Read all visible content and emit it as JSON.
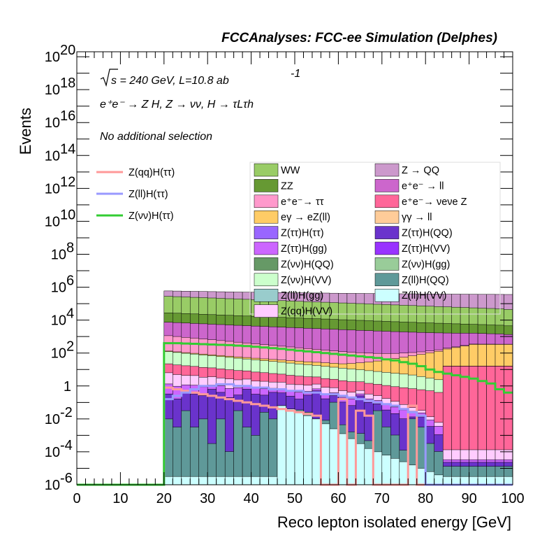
{
  "chart_data": {
    "type": "stacked-histogram",
    "title": "FCCAnalyses: FCC-ee Simulation (Delphes)",
    "xlabel": "Reco lepton isolated energy [GeV]",
    "ylabel": "Events",
    "xlim": [
      0,
      100
    ],
    "ylim": [
      1e-06,
      2e+20
    ],
    "yscale": "log",
    "bin_width": 2,
    "bin_start": 20,
    "x_ticks": [
      "0",
      "10",
      "20",
      "30",
      "40",
      "50",
      "60",
      "70",
      "80",
      "90",
      "100"
    ],
    "y_ticks": [
      {
        "base": "10",
        "exp": "-6",
        "value": 1e-06
      },
      {
        "base": "10",
        "exp": "-4",
        "value": 0.0001
      },
      {
        "base": "10",
        "exp": "-2",
        "value": 0.01
      },
      {
        "base": "1",
        "exp": "",
        "value": 1
      },
      {
        "base": "10",
        "exp": "2",
        "value": 100.0
      },
      {
        "base": "10",
        "exp": "4",
        "value": 10000.0
      },
      {
        "base": "10",
        "exp": "6",
        "value": 1000000.0
      },
      {
        "base": "10",
        "exp": "8",
        "value": 100000000.0
      },
      {
        "base": "10",
        "exp": "10",
        "value": 10000000000.0
      },
      {
        "base": "10",
        "exp": "12",
        "value": 1000000000000.0
      },
      {
        "base": "10",
        "exp": "14",
        "value": 100000000000000.0
      },
      {
        "base": "10",
        "exp": "16",
        "value": 1e+16
      },
      {
        "base": "10",
        "exp": "18",
        "value": 1e+18
      },
      {
        "base": "10",
        "exp": "20",
        "value": 1e+20
      }
    ],
    "annotations": {
      "sqrt_s": "s = 240 GeV, L=10.8 ab",
      "lumi_exp": "-1",
      "process": "e⁺e⁻ → Z H, Z → νν, H → τLτh",
      "selection": "No additional selection"
    },
    "stack_bins_log10": {
      "Z(ll)H(VV)": [
        -5.5,
        -5.5,
        -5.5,
        -5.5,
        -5.5,
        -5.5,
        -5.5,
        -5.5,
        -5.5,
        -5.5,
        -5.5,
        -5.5,
        -5.5,
        -1.2,
        -1.4,
        -1.6,
        -1.8,
        -2.0,
        -2.3,
        -2.6,
        -2.9,
        -3.2,
        -3.5,
        -3.8,
        -4.0,
        -4.2,
        -4.4,
        -4.6,
        -4.8,
        -5.0,
        -5.2,
        -5.4,
        -5.5,
        -5.5,
        -5.5,
        -5.5,
        -5.5,
        -5.5,
        -5.5,
        -5.5
      ],
      "Z(ll)H(QQ)": [
        -2.0,
        -2.5,
        -1.5,
        -2.5,
        -2.0,
        -3.5,
        -2.0,
        -4.0,
        -1.5,
        -2.5,
        -3.0,
        -1.6,
        -2.0,
        -4.0,
        -4.5,
        -2.0,
        -2.0,
        -4.0,
        -2.5,
        -1.0,
        -2.5,
        -3.0,
        -3.0,
        -3.5,
        -1.5,
        -2.5,
        -3.0,
        -4.0,
        -2.0,
        -2.5,
        -3.5,
        -4.0,
        -5.0,
        -5.0,
        -5.0,
        -5.0,
        -5.0,
        -5.0,
        -5.0,
        -5.0
      ],
      "Z(ττ)H(QQ)": [
        -0.5,
        -0.8,
        -0.3,
        -0.5,
        -0.6,
        -0.2,
        -0.4,
        -0.7,
        -0.6,
        -0.2,
        -0.5,
        -0.6,
        -0.4,
        -0.5,
        -0.7,
        -0.9,
        -0.6,
        -0.3,
        -0.8,
        -0.8,
        -1.0,
        -1.2,
        -0.6,
        -1.0,
        -1.3,
        -1.5,
        -1.7,
        -2.0,
        -2.5,
        -2.0,
        -2.5,
        -3.0,
        -5.0,
        -5.0,
        -5.0,
        -5.0,
        -5.0,
        -5.0,
        -5.0,
        -5.0
      ],
      "Z(ττ)H(gg)": [
        0.0,
        -0.1,
        -0.2,
        -0.1,
        -0.2,
        -0.3,
        -0.2,
        -0.3,
        -0.3,
        -0.4,
        -0.4,
        -0.4,
        -0.5,
        -0.5,
        -0.6,
        -0.6,
        -0.7,
        -0.8,
        -0.8,
        -0.9,
        -1.0,
        -1.0,
        -1.1,
        -1.2,
        -1.3,
        -1.4,
        -1.5,
        -1.6,
        -1.8,
        -2.0,
        -2.3,
        -2.6,
        -5.0,
        -5.0,
        -5.0,
        -5.0,
        -5.0,
        -5.0,
        -5.0,
        -5.0
      ],
      "Z(qq)H(VV)": [
        0.7,
        0.6,
        0.5,
        0.5,
        0.4,
        0.4,
        0.3,
        0.3,
        0.2,
        0.2,
        0.1,
        0.1,
        0.0,
        0.0,
        -0.1,
        -0.1,
        -0.2,
        -0.2,
        -0.3,
        -0.4,
        -0.5,
        -0.6,
        -0.7,
        -0.8,
        -0.9,
        -1.0,
        -1.2,
        -1.4,
        -1.7,
        -2.0,
        -2.3,
        -2.6,
        -4.0,
        -4.0,
        -4.0,
        -4.0,
        -4.0,
        -4.0,
        -4.0,
        -4.0
      ],
      "e⁺e⁻→ νeνe Z": [
        1.2,
        1.15,
        1.1,
        1.05,
        1.0,
        0.95,
        0.9,
        0.85,
        0.8,
        0.75,
        0.7,
        0.65,
        0.6,
        0.55,
        0.5,
        0.45,
        0.4,
        0.35,
        0.3,
        0.25,
        0.2,
        0.15,
        0.1,
        0.05,
        0.0,
        -0.05,
        -0.1,
        -0.15,
        -0.2,
        -0.25,
        -0.3,
        -0.4,
        1.2,
        1.2,
        1.2,
        1.2,
        1.2,
        1.2,
        1.2,
        1.2
      ],
      "Z(νν)H(VV)": [
        2.0,
        1.95,
        1.9,
        1.85,
        1.8,
        1.75,
        1.7,
        1.65,
        1.6,
        1.55,
        1.5,
        1.45,
        1.4,
        1.35,
        1.3,
        1.25,
        1.2,
        1.15,
        1.1,
        1.05,
        1.0,
        0.95,
        0.9,
        0.85,
        0.8,
        0.75,
        0.7,
        0.65,
        0.6,
        0.5,
        0.4,
        0.3,
        -0.5,
        -0.5,
        -0.5,
        -0.5,
        -0.5,
        -0.5,
        -0.5,
        -0.5
      ],
      "eγ → eZ(ll)": [
        1.0,
        1.0,
        1.0,
        1.0,
        1.0,
        1.0,
        1.0,
        1.0,
        1.0,
        1.0,
        1.0,
        1.0,
        1.0,
        1.0,
        1.0,
        1.0,
        1.0,
        1.0,
        1.0,
        1.0,
        1.0,
        1.1,
        1.2,
        1.3,
        1.4,
        1.5,
        1.6,
        1.7,
        1.8,
        1.9,
        2.0,
        2.1,
        2.2,
        2.3,
        2.4,
        2.5,
        2.5,
        2.5,
        2.5,
        2.5
      ],
      "e⁺e⁻→ ττ": [
        3.0,
        2.95,
        2.9,
        2.85,
        2.8,
        2.75,
        2.7,
        2.65,
        2.6,
        2.55,
        2.5,
        2.45,
        2.4,
        2.35,
        2.3,
        2.25,
        2.2,
        2.15,
        2.1,
        2.05,
        2.0,
        1.95,
        1.9,
        1.85,
        1.8,
        1.75,
        1.7,
        1.65,
        1.6,
        1.55,
        1.5,
        1.45,
        1.4,
        1.35,
        1.3,
        1.25,
        1.2,
        1.15,
        1.1,
        1.0
      ],
      "e⁺e⁻ → ll": [
        3.8,
        3.78,
        3.76,
        3.74,
        3.72,
        3.7,
        3.68,
        3.66,
        3.64,
        3.62,
        3.6,
        3.58,
        3.56,
        3.54,
        3.52,
        3.5,
        3.48,
        3.46,
        3.44,
        3.42,
        3.4,
        3.38,
        3.36,
        3.34,
        3.32,
        3.3,
        3.28,
        3.26,
        3.24,
        3.22,
        3.2,
        3.18,
        3.16,
        3.14,
        3.12,
        3.1,
        3.08,
        3.06,
        3.04,
        3.0
      ],
      "ZZ": [
        4.3,
        4.28,
        4.26,
        4.24,
        4.22,
        4.2,
        4.18,
        4.16,
        4.14,
        4.12,
        4.1,
        4.08,
        4.06,
        4.04,
        4.02,
        4.0,
        3.98,
        3.96,
        3.94,
        3.92,
        3.9,
        3.88,
        3.86,
        3.84,
        3.82,
        3.8,
        3.78,
        3.76,
        3.74,
        3.72,
        3.7,
        3.68,
        3.66,
        3.64,
        3.62,
        3.6,
        3.58,
        3.56,
        3.54,
        3.5
      ],
      "WW": [
        5.4,
        5.38,
        5.36,
        5.34,
        5.32,
        5.3,
        5.28,
        5.26,
        5.24,
        5.22,
        5.2,
        5.18,
        5.16,
        5.14,
        5.12,
        5.1,
        5.08,
        5.06,
        5.04,
        5.02,
        5.0,
        4.98,
        4.96,
        4.94,
        4.92,
        4.9,
        4.88,
        4.86,
        4.84,
        4.82,
        4.8,
        4.78,
        4.76,
        4.74,
        4.72,
        4.7,
        4.68,
        4.66,
        4.64,
        4.6
      ],
      "Z → QQ": [
        5.5,
        5.5,
        5.5,
        5.5,
        5.5,
        5.5,
        5.5,
        5.5,
        5.5,
        5.5,
        5.5,
        5.5,
        5.5,
        5.5,
        5.5,
        5.5,
        5.5,
        5.5,
        5.5,
        5.5,
        5.5,
        5.5,
        5.5,
        5.5,
        5.5,
        5.5,
        5.5,
        5.5,
        5.5,
        5.5,
        5.5,
        5.5,
        5.5,
        5.5,
        5.5,
        5.5,
        5.5,
        5.5,
        5.5,
        5.5
      ]
    },
    "stack_order": [
      "Z(ll)H(VV)",
      "Z(ll)H(QQ)",
      "Z(ττ)H(QQ)",
      "Z(ττ)H(gg)",
      "Z(qq)H(VV)",
      "e⁺e⁻→ νeνe Z",
      "Z(νν)H(VV)",
      "eγ → eZ(ll)",
      "e⁺e⁻→ ττ",
      "e⁺e⁻ → ll",
      "ZZ",
      "WW",
      "Z → QQ"
    ],
    "stack_colors": {
      "Z(ll)H(VV)": "#ccffff",
      "Z(ll)H(QQ)": "#5f9999",
      "Z(ττ)H(QQ)": "#6a33cc",
      "Z(ττ)H(gg)": "#cc66ff",
      "Z(qq)H(VV)": "#ffccff",
      "e⁺e⁻→ νeνe Z": "#ff6699",
      "Z(νν)H(VV)": "#ccffcc",
      "eγ → eZ(ll)": "#ffcc66",
      "e⁺e⁻→ ττ": "#ff99cc",
      "e⁺e⁻ → ll": "#cc66cc",
      "ZZ": "#669933",
      "WW": "#99cc66",
      "Z → QQ": "#cc99cc"
    },
    "signal_lines": {
      "Z(qq)H(ττ)": {
        "color": "#ff9999",
        "log10": [
          -0.1,
          -0.2,
          -0.3,
          -0.4,
          -0.5,
          -0.6,
          -0.7,
          -0.8,
          -0.9,
          -1.0,
          -1.1,
          -1.2,
          -1.3,
          -1.4,
          -1.5,
          -1.6,
          -1.7,
          -1.8,
          -6.0,
          -6.0,
          -0.8,
          -6.0,
          -1.5,
          -1.8,
          -6.0,
          -6.0,
          -6.0,
          -6.0,
          -1.2,
          -6.0,
          -6.0,
          -6.0,
          -6.0,
          -6.0,
          -6.0,
          -6.0,
          -6.0,
          -6.0,
          -6.0,
          -6.0
        ]
      },
      "Z(ll)H(ττ)": {
        "color": "#9999ff",
        "log10": [
          -0.8,
          -0.6,
          -0.4,
          -0.2,
          0.0,
          0.0,
          0.1,
          0.1,
          0.0,
          0.0,
          -0.1,
          -0.1,
          -0.2,
          -0.2,
          -0.3,
          -0.3,
          -0.4,
          -0.4,
          -0.5,
          -0.5,
          -0.6,
          -0.7,
          -0.8,
          -0.9,
          -1.0,
          -1.1,
          -1.2,
          -1.4,
          -1.6,
          -1.8,
          -6.0,
          -6.0,
          -6.0,
          -6.0,
          -6.0,
          -6.0,
          -6.0,
          -6.0,
          -6.0,
          -6.0
        ]
      },
      "Z(νν)H(ττ)": {
        "color": "#33cc33",
        "log10": [
          2.6,
          2.6,
          2.58,
          2.56,
          2.54,
          2.52,
          2.5,
          2.48,
          2.45,
          2.42,
          2.38,
          2.34,
          2.3,
          2.25,
          2.2,
          2.15,
          2.1,
          2.05,
          2.0,
          1.95,
          1.9,
          1.85,
          1.8,
          1.75,
          1.7,
          1.62,
          1.55,
          1.45,
          1.35,
          1.2,
          1.0,
          0.85,
          0.75,
          0.65,
          0.55,
          0.45,
          0.3,
          0.15,
          -0.2,
          -0.4
        ]
      }
    },
    "legend_left": [
      "Z(qq)H(ττ)",
      "Z(ll)H(ττ)",
      "Z(νν)H(ττ)"
    ],
    "legend_right": [
      "WW",
      "Z → QQ",
      "ZZ",
      "e⁺e⁻ → ll",
      "e⁺e⁻→ ττ",
      "e⁺e⁻→ νeνe Z",
      "eγ → eZ(ll)",
      "γγ → ll",
      "Z(ττ)H(ττ)",
      "Z(ττ)H(QQ)",
      "Z(ττ)H(gg)",
      "Z(ττ)H(VV)",
      "Z(νν)H(QQ)",
      "Z(νν)H(gg)",
      "Z(νν)H(VV)",
      "Z(ll)H(QQ)",
      "Z(ll)H(gg)",
      "Z(ll)H(VV)",
      "Z(qq)H(VV)"
    ],
    "legend_colors": {
      "WW": "#99cc66",
      "Z → QQ": "#cc99cc",
      "ZZ": "#669933",
      "e⁺e⁻ → ll": "#cc66cc",
      "e⁺e⁻→ ττ": "#ff99cc",
      "e⁺e⁻→ νeνe Z": "#ff6699",
      "eγ → eZ(ll)": "#ffcc66",
      "γγ → ll": "#ffcc99",
      "Z(ττ)H(ττ)": "#9966ff",
      "Z(ττ)H(QQ)": "#6a33cc",
      "Z(ττ)H(gg)": "#cc66ff",
      "Z(ττ)H(VV)": "#9933ff",
      "Z(νν)H(QQ)": "#669966",
      "Z(νν)H(gg)": "#99cc99",
      "Z(νν)H(VV)": "#ccffcc",
      "Z(ll)H(QQ)": "#5f9999",
      "Z(ll)H(gg)": "#99cccc",
      "Z(ll)H(VV)": "#ccffff",
      "Z(qq)H(VV)": "#ffccff"
    }
  }
}
